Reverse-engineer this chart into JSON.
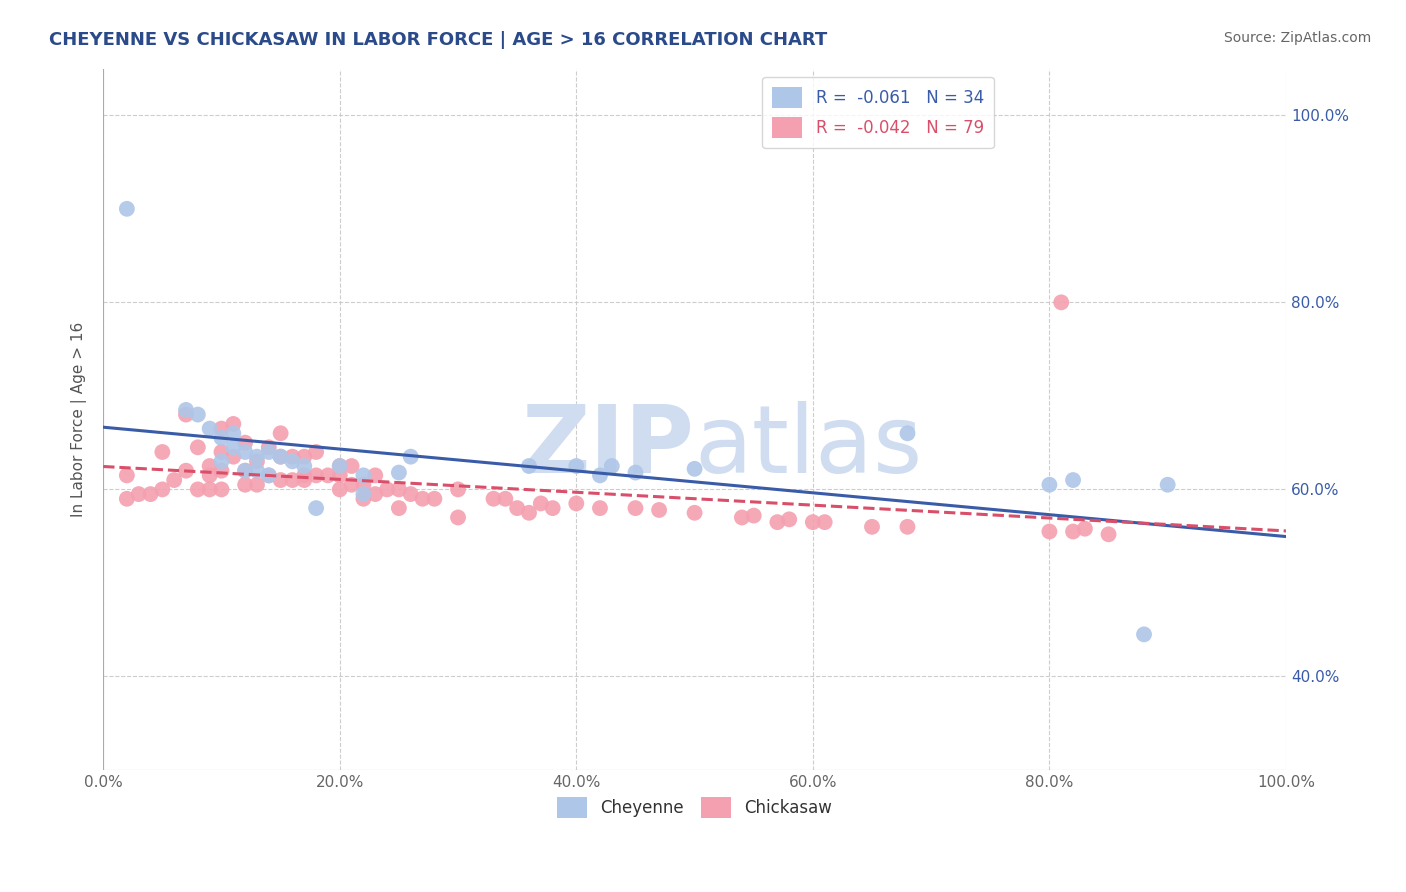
{
  "title": "CHEYENNE VS CHICKASAW IN LABOR FORCE | AGE > 16 CORRELATION CHART",
  "source": "Source: ZipAtlas.com",
  "ylabel": "In Labor Force | Age > 16",
  "xlim": [
    0.0,
    1.0
  ],
  "ylim": [
    0.3,
    1.05
  ],
  "cheyenne_R": -0.061,
  "cheyenne_N": 34,
  "chickasaw_R": -0.042,
  "chickasaw_N": 79,
  "cheyenne_color": "#aec6e8",
  "chickasaw_color": "#f4a0b0",
  "trend_cheyenne_color": "#3a5ca8",
  "trend_chickasaw_color": "#d94f6a",
  "watermark_color": "#d0ddf0",
  "background_color": "#ffffff",
  "grid_color": "#c8c8c8",
  "cheyenne_x": [
    0.02,
    0.07,
    0.08,
    0.09,
    0.1,
    0.1,
    0.11,
    0.11,
    0.12,
    0.12,
    0.13,
    0.13,
    0.14,
    0.14,
    0.15,
    0.16,
    0.17,
    0.18,
    0.2,
    0.22,
    0.22,
    0.25,
    0.26,
    0.36,
    0.4,
    0.42,
    0.43,
    0.45,
    0.5,
    0.68,
    0.8,
    0.82,
    0.88,
    0.9
  ],
  "cheyenne_y": [
    0.9,
    0.685,
    0.68,
    0.665,
    0.655,
    0.63,
    0.645,
    0.66,
    0.64,
    0.62,
    0.635,
    0.62,
    0.64,
    0.615,
    0.635,
    0.63,
    0.625,
    0.58,
    0.625,
    0.615,
    0.595,
    0.618,
    0.635,
    0.625,
    0.625,
    0.615,
    0.625,
    0.618,
    0.622,
    0.66,
    0.605,
    0.61,
    0.445,
    0.605
  ],
  "chickasaw_x": [
    0.02,
    0.02,
    0.03,
    0.04,
    0.05,
    0.05,
    0.06,
    0.07,
    0.07,
    0.08,
    0.08,
    0.09,
    0.09,
    0.09,
    0.1,
    0.1,
    0.1,
    0.1,
    0.11,
    0.11,
    0.12,
    0.12,
    0.12,
    0.13,
    0.13,
    0.14,
    0.14,
    0.15,
    0.15,
    0.15,
    0.16,
    0.16,
    0.17,
    0.17,
    0.17,
    0.18,
    0.18,
    0.19,
    0.2,
    0.2,
    0.2,
    0.21,
    0.21,
    0.22,
    0.22,
    0.23,
    0.23,
    0.24,
    0.25,
    0.25,
    0.26,
    0.27,
    0.28,
    0.3,
    0.3,
    0.33,
    0.34,
    0.35,
    0.36,
    0.37,
    0.38,
    0.4,
    0.42,
    0.45,
    0.47,
    0.5,
    0.54,
    0.55,
    0.57,
    0.58,
    0.6,
    0.61,
    0.65,
    0.68,
    0.8,
    0.82,
    0.83,
    0.85,
    0.81
  ],
  "chickasaw_y": [
    0.615,
    0.59,
    0.595,
    0.595,
    0.64,
    0.6,
    0.61,
    0.68,
    0.62,
    0.645,
    0.6,
    0.625,
    0.615,
    0.6,
    0.665,
    0.64,
    0.62,
    0.6,
    0.67,
    0.635,
    0.65,
    0.62,
    0.605,
    0.63,
    0.605,
    0.645,
    0.615,
    0.66,
    0.635,
    0.61,
    0.635,
    0.61,
    0.635,
    0.615,
    0.61,
    0.64,
    0.615,
    0.615,
    0.625,
    0.615,
    0.6,
    0.625,
    0.605,
    0.605,
    0.59,
    0.615,
    0.595,
    0.6,
    0.6,
    0.58,
    0.595,
    0.59,
    0.59,
    0.6,
    0.57,
    0.59,
    0.59,
    0.58,
    0.575,
    0.585,
    0.58,
    0.585,
    0.58,
    0.58,
    0.578,
    0.575,
    0.57,
    0.572,
    0.565,
    0.568,
    0.565,
    0.565,
    0.56,
    0.56,
    0.555,
    0.555,
    0.558,
    0.552,
    0.8
  ],
  "ytick_labels": [
    "40.0%",
    "60.0%",
    "80.0%",
    "100.0%"
  ],
  "ytick_values": [
    0.4,
    0.6,
    0.8,
    1.0
  ],
  "xtick_labels": [
    "0.0%",
    "20.0%",
    "40.0%",
    "60.0%",
    "80.0%",
    "100.0%"
  ],
  "xtick_values": [
    0.0,
    0.2,
    0.4,
    0.6,
    0.8,
    1.0
  ]
}
